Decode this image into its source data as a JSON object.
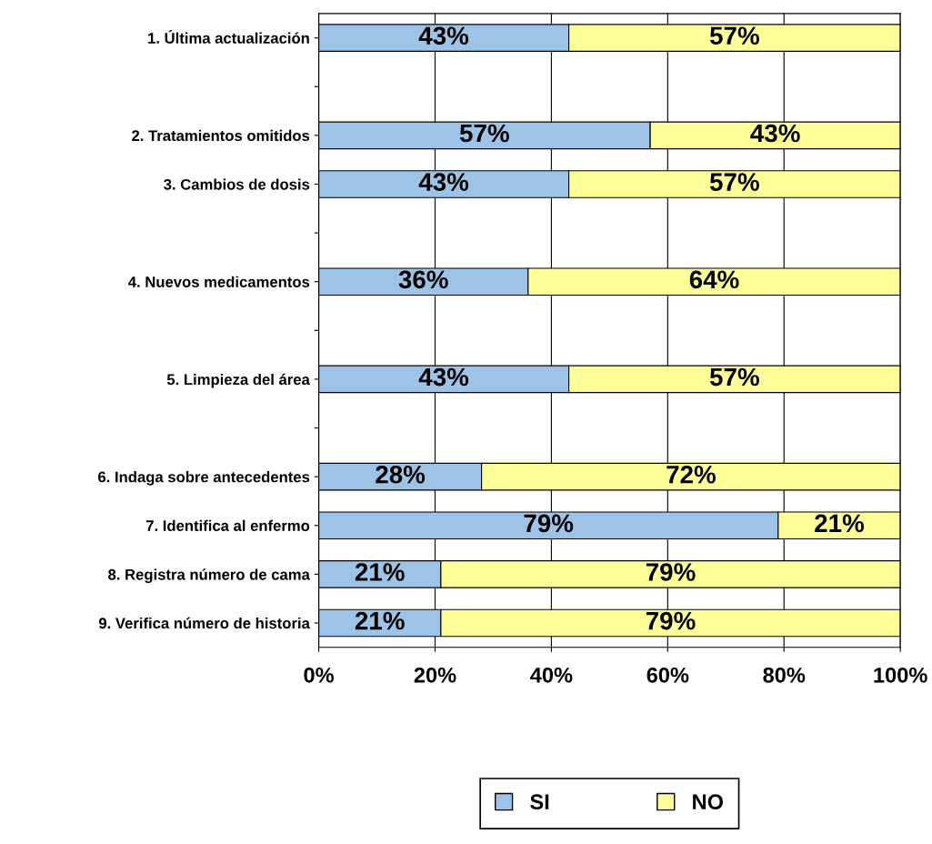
{
  "chart_data": {
    "type": "bar",
    "orientation": "horizontal",
    "stacked": true,
    "categories": [
      "1. Última actualización",
      null,
      "2. Tratamientos omitidos",
      "3. Cambios de dosis",
      null,
      "4. Nuevos medicamentos",
      null,
      "5. Limpieza del área",
      null,
      "6. Indaga sobre antecedentes",
      "7. Identifica al enfermo",
      "8. Registra número de cama",
      "9. Verifica número de historia"
    ],
    "series": [
      {
        "name": "SI",
        "color": "#9dc3e6",
        "values": [
          43,
          null,
          57,
          43,
          null,
          36,
          null,
          43,
          null,
          28,
          79,
          21,
          21
        ],
        "value_labels": [
          "43%",
          null,
          "57%",
          "43%",
          null,
          "36%",
          null,
          "43%",
          null,
          "28%",
          "79%",
          "21%",
          "21%"
        ]
      },
      {
        "name": "NO",
        "color": "#ffff99",
        "values": [
          57,
          null,
          43,
          57,
          null,
          64,
          null,
          57,
          null,
          72,
          21,
          79,
          79
        ],
        "value_labels": [
          "57%",
          null,
          "43%",
          "57%",
          null,
          "64%",
          null,
          "57%",
          null,
          "72%",
          "21%",
          "79%",
          "79%"
        ]
      }
    ],
    "xlim": [
      0,
      100
    ],
    "xticks": [
      {
        "value": 0,
        "label": "0%"
      },
      {
        "value": 20,
        "label": "20%"
      },
      {
        "value": 40,
        "label": "40%"
      },
      {
        "value": 60,
        "label": "60%"
      },
      {
        "value": 80,
        "label": "80%"
      },
      {
        "value": 100,
        "label": "100%"
      }
    ],
    "grid": "x",
    "legend": "bottom"
  }
}
